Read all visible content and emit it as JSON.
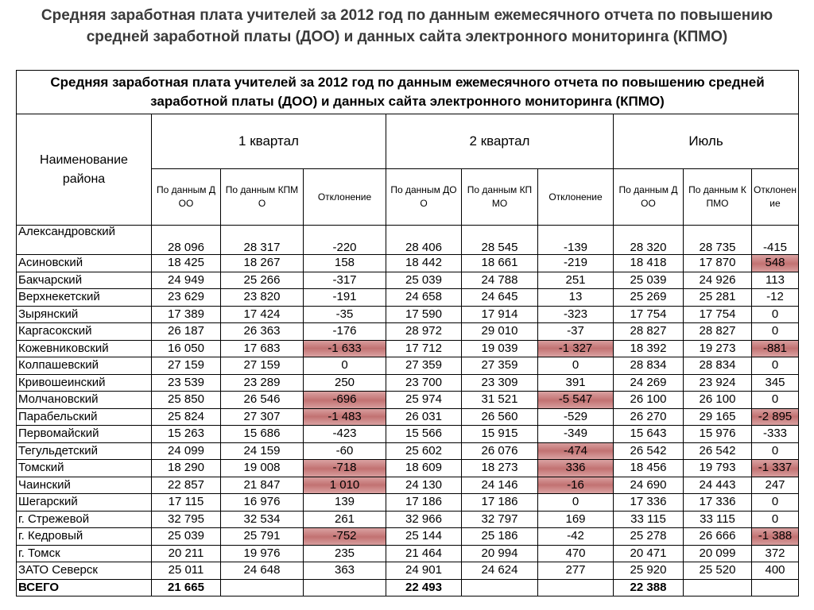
{
  "header": {
    "title": "Средняя заработная плата учителей за 2012 год по данным ежемесячного отчета по повышению средней заработной платы (ДОО) и данных сайта электронного мониторинга (КПМО)"
  },
  "table": {
    "caption": "Средняя заработная плата учителей за 2012 год по данным ежемесячного отчета по повышению средней заработной платы (ДОО) и данных сайта электронного мониторинга (КПМО)",
    "name_header": "Наименование района",
    "periods": [
      "1 квартал",
      "2 квартал",
      "Июль"
    ],
    "subheaders": [
      "По данным ДОО",
      "По данным КПМО",
      "Отклонение"
    ],
    "highlight_color": "#c97a7a",
    "rows": [
      {
        "name": "Александровский",
        "values": [
          "28 096",
          "28 317",
          "-220",
          "28 406",
          "28 545",
          "-139",
          "28 320",
          "28 735",
          "-415"
        ],
        "highlight": []
      },
      {
        "name": "Асиновский",
        "values": [
          "18 425",
          "18 267",
          "158",
          "18 442",
          "18 661",
          "-219",
          "18 418",
          "17 870",
          "548"
        ],
        "highlight": [
          8
        ]
      },
      {
        "name": "Бакчарский",
        "values": [
          "24 949",
          "25 266",
          "-317",
          "25 039",
          "24 788",
          "251",
          "25 039",
          "24 926",
          "113"
        ],
        "highlight": []
      },
      {
        "name": "Верхнекетский",
        "values": [
          "23 629",
          "23 820",
          "-191",
          "24 658",
          "24 645",
          "13",
          "25 269",
          "25 281",
          "-12"
        ],
        "highlight": []
      },
      {
        "name": "Зырянский",
        "values": [
          "17 389",
          "17 424",
          "-35",
          "17 590",
          "17 914",
          "-323",
          "17 754",
          "17 754",
          "0"
        ],
        "highlight": []
      },
      {
        "name": "Каргасокский",
        "values": [
          "26 187",
          "26 363",
          "-176",
          "28 972",
          "29 010",
          "-37",
          "28 827",
          "28 827",
          "0"
        ],
        "highlight": []
      },
      {
        "name": "Кожевниковский",
        "values": [
          "16 050",
          "17 683",
          "-1 633",
          "17 712",
          "19 039",
          "-1 327",
          "18 392",
          "19 273",
          "-881"
        ],
        "highlight": [
          2,
          5,
          8
        ]
      },
      {
        "name": "Колпашевский",
        "values": [
          "27 159",
          "27 159",
          "0",
          "27 359",
          "27 359",
          "0",
          "28 834",
          "28 834",
          "0"
        ],
        "highlight": []
      },
      {
        "name": "Кривошеинский",
        "values": [
          "23 539",
          "23 289",
          "250",
          "23 700",
          "23 309",
          "391",
          "24 269",
          "23 924",
          "345"
        ],
        "highlight": []
      },
      {
        "name": "Молчановский",
        "values": [
          "25 850",
          "26 546",
          "-696",
          "25 974",
          "31 521",
          "-5 547",
          "26 100",
          "26 100",
          "0"
        ],
        "highlight": [
          2,
          5
        ]
      },
      {
        "name": "Парабельский",
        "values": [
          "25 824",
          "27 307",
          "-1 483",
          "26 031",
          "26 560",
          "-529",
          "26 270",
          "29 165",
          "-2 895"
        ],
        "highlight": [
          2,
          8
        ]
      },
      {
        "name": "Первомайский",
        "values": [
          "15 263",
          "15 686",
          "-423",
          "15 566",
          "15 915",
          "-349",
          "15 643",
          "15 976",
          "-333"
        ],
        "highlight": []
      },
      {
        "name": "Тегульдетский",
        "values": [
          "24 099",
          "24 159",
          "-60",
          "25 602",
          "26 076",
          "-474",
          "26 542",
          "26 542",
          "0"
        ],
        "highlight": [
          5
        ]
      },
      {
        "name": "Томский",
        "values": [
          "18 290",
          "19 008",
          "-718",
          "18 609",
          "18 273",
          "336",
          "18 456",
          "19 793",
          "-1 337"
        ],
        "highlight": [
          2,
          5,
          8
        ]
      },
      {
        "name": "Чаинский",
        "values": [
          "22 857",
          "21 847",
          "1 010",
          "24 130",
          "24 146",
          "-16",
          "24 690",
          "24 443",
          "247"
        ],
        "highlight": [
          2,
          5
        ]
      },
      {
        "name": "Шегарский",
        "values": [
          "17 115",
          "16 976",
          "139",
          "17 186",
          "17 186",
          "0",
          "17 336",
          "17 336",
          "0"
        ],
        "highlight": []
      },
      {
        "name": "г. Стрежевой",
        "values": [
          "32 795",
          "32 534",
          "261",
          "32 966",
          "32 797",
          "169",
          "33 115",
          "33 115",
          "0"
        ],
        "highlight": []
      },
      {
        "name": "г. Кедровый",
        "values": [
          "25 039",
          "25 791",
          "-752",
          "25 144",
          "25 186",
          "-42",
          "25 278",
          "26 666",
          "-1 388"
        ],
        "highlight": [
          2,
          8
        ]
      },
      {
        "name": "г. Томск",
        "values": [
          "20 211",
          "19 976",
          "235",
          "21 464",
          "20 994",
          "470",
          "20 471",
          "20 099",
          "372"
        ],
        "highlight": []
      },
      {
        "name": "ЗАТО Северск",
        "values": [
          "25 011",
          "24 648",
          "363",
          "24 901",
          "24 624",
          "277",
          "25 920",
          "25 520",
          "400"
        ],
        "highlight": []
      }
    ],
    "total": {
      "name": "ВСЕГО",
      "values": [
        "21 665",
        null,
        null,
        "22 493",
        null,
        null,
        "22 388",
        null,
        null
      ]
    }
  }
}
